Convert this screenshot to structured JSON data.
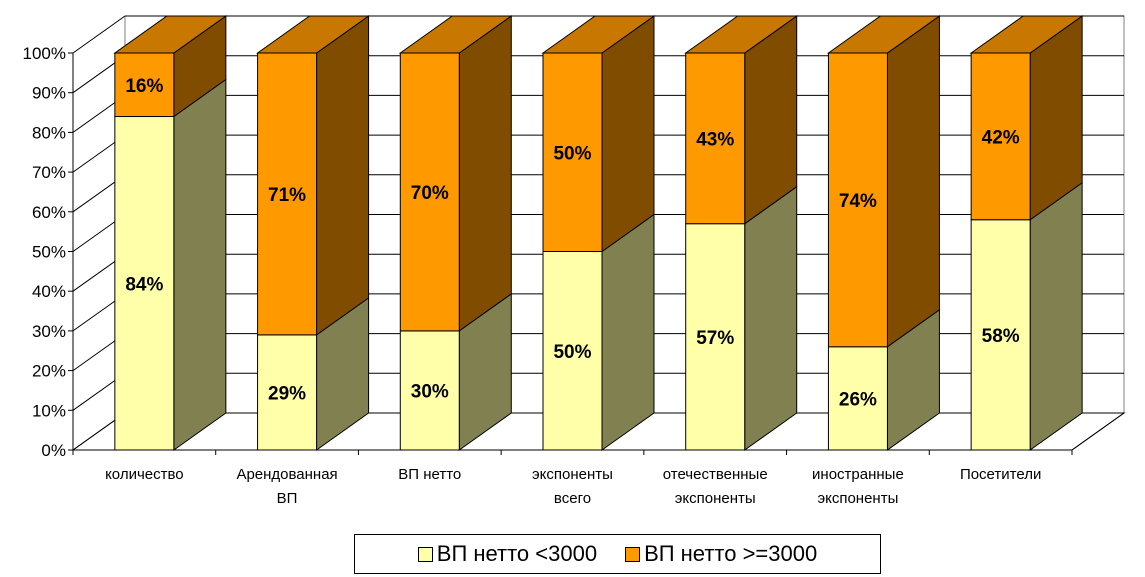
{
  "chart_data": {
    "type": "bar",
    "stacked": true,
    "three_d": true,
    "categories": [
      [
        "количество"
      ],
      [
        "Арендованная",
        "ВП"
      ],
      [
        "ВП нетто"
      ],
      [
        "экспоненты",
        "всего"
      ],
      [
        "отечественные",
        "экспоненты"
      ],
      [
        "иностранные",
        "экспоненты"
      ],
      [
        "Посетители"
      ]
    ],
    "series": [
      {
        "name": "ВП нетто <3000",
        "values": [
          84,
          29,
          30,
          50,
          57,
          26,
          58
        ],
        "color": "#FFFFAA",
        "side_color": "#808050"
      },
      {
        "name": "ВП нетто >=3000",
        "values": [
          16,
          71,
          70,
          50,
          43,
          74,
          42
        ],
        "color": "#FF9900",
        "side_color": "#804C00",
        "top_color": "#C87800"
      }
    ],
    "data_labels": [
      [
        "84%",
        "29%",
        "30%",
        "50%",
        "57%",
        "26%",
        "58%"
      ],
      [
        "16%",
        "71%",
        "70%",
        "50%",
        "43%",
        "74%",
        "42%"
      ]
    ],
    "y_ticks": [
      "0%",
      "10%",
      "20%",
      "30%",
      "40%",
      "50%",
      "60%",
      "70%",
      "80%",
      "90%",
      "100%"
    ],
    "ylim": [
      0,
      100
    ],
    "grid": true,
    "legend_position": "bottom"
  }
}
